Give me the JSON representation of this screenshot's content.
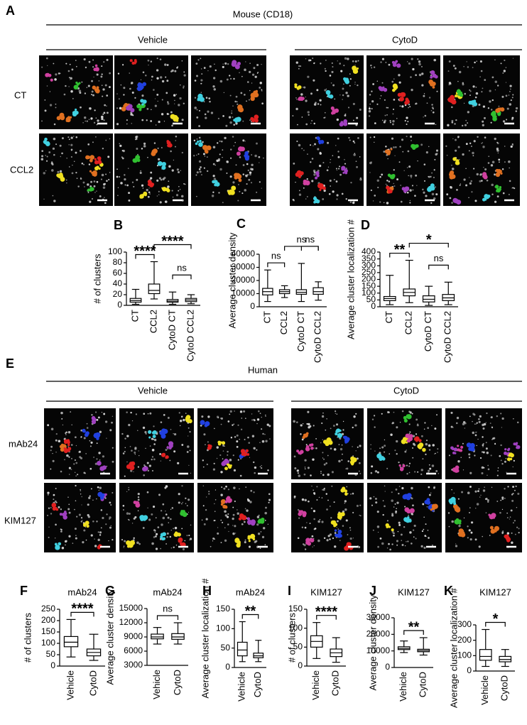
{
  "panel_a": {
    "label": "A",
    "title": "Mouse (CD18)",
    "groups": [
      "Vehicle",
      "CytoD"
    ],
    "rows": [
      "CT",
      "CCL2"
    ]
  },
  "panel_e": {
    "label": "E",
    "title": "Human",
    "groups": [
      "Vehicle",
      "CytoD"
    ],
    "rows": [
      "mAb24",
      "KIM127"
    ]
  },
  "chart_data": [
    {
      "type": "box",
      "label": "B",
      "ylabel": "# of clusters",
      "categories": [
        "CT",
        "CCL2",
        "CytoD CT",
        "CytoD CCL2"
      ],
      "boxes": [
        {
          "min": 2,
          "q1": 6,
          "median": 9,
          "q3": 13,
          "max": 30
        },
        {
          "min": 12,
          "q1": 22,
          "median": 28,
          "q3": 40,
          "max": 82
        },
        {
          "min": 2,
          "q1": 6,
          "median": 8,
          "q3": 11,
          "max": 25
        },
        {
          "min": 3,
          "q1": 7,
          "median": 10,
          "q3": 13,
          "max": 20
        }
      ],
      "ylim": [
        0,
        100
      ],
      "yticks": [
        0,
        20,
        40,
        60,
        80,
        100
      ],
      "comparisons": [
        {
          "from": "CT",
          "to": "CCL2",
          "label": "****"
        },
        {
          "from": "CCL2",
          "to": "CytoD CCL2",
          "label": "****"
        },
        {
          "from": "CytoD CT",
          "to": "CytoD CCL2",
          "label": "ns"
        }
      ]
    },
    {
      "type": "box",
      "label": "C",
      "ylabel": "Average cluster density",
      "categories": [
        "CT",
        "CCL2",
        "CytoD CT",
        "CytoD CCL2"
      ],
      "boxes": [
        {
          "min": 4000,
          "q1": 9000,
          "median": 11500,
          "q3": 14000,
          "max": 28000
        },
        {
          "min": 7000,
          "q1": 10000,
          "median": 11500,
          "q3": 13000,
          "max": 16000
        },
        {
          "min": 4000,
          "q1": 9500,
          "median": 11000,
          "q3": 13000,
          "max": 33000
        },
        {
          "min": 5000,
          "q1": 9500,
          "median": 11500,
          "q3": 14500,
          "max": 19000
        }
      ],
      "ylim": [
        0,
        40000
      ],
      "yticks": [
        0,
        10000,
        20000,
        30000,
        40000
      ],
      "comparisons": [
        {
          "from": "CT",
          "to": "CCL2",
          "label": "ns"
        },
        {
          "from": "CCL2",
          "to": "CytoD CCL2",
          "label": "ns"
        },
        {
          "from": "CytoD CT",
          "to": "CytoD CCL2",
          "label": "ns"
        }
      ]
    },
    {
      "type": "box",
      "label": "D",
      "ylabel": "Average cluster localization #",
      "categories": [
        "CT",
        "CCL2",
        "CytoD CT",
        "CytoD CCL2"
      ],
      "boxes": [
        {
          "min": 15,
          "q1": 45,
          "median": 60,
          "q3": 75,
          "max": 230
        },
        {
          "min": 30,
          "q1": 80,
          "median": 105,
          "q3": 130,
          "max": 340
        },
        {
          "min": 10,
          "q1": 35,
          "median": 55,
          "q3": 80,
          "max": 150
        },
        {
          "min": 15,
          "q1": 45,
          "median": 65,
          "q3": 90,
          "max": 180
        }
      ],
      "ylim": [
        0,
        400
      ],
      "yticks": [
        0,
        50,
        100,
        150,
        200,
        250,
        300,
        350,
        400
      ],
      "comparisons": [
        {
          "from": "CT",
          "to": "CCL2",
          "label": "**"
        },
        {
          "from": "CCL2",
          "to": "CytoD CCL2",
          "label": "*"
        },
        {
          "from": "CytoD CT",
          "to": "CytoD CCL2",
          "label": "ns"
        }
      ]
    },
    {
      "type": "box",
      "label": "F",
      "title": "mAb24",
      "ylabel": "# of clusters",
      "categories": [
        "Vehicle",
        "CytoD"
      ],
      "boxes": [
        {
          "min": 40,
          "q1": 85,
          "median": 105,
          "q3": 130,
          "max": 205
        },
        {
          "min": 25,
          "q1": 45,
          "median": 60,
          "q3": 75,
          "max": 140
        }
      ],
      "ylim": [
        0,
        250
      ],
      "yticks": [
        0,
        50,
        100,
        150,
        200,
        250
      ],
      "comparisons": [
        {
          "from": "Vehicle",
          "to": "CytoD",
          "label": "****"
        }
      ]
    },
    {
      "type": "box",
      "label": "G",
      "title": "mAb24",
      "ylabel": "Average cluster density",
      "categories": [
        "Vehicle",
        "CytoD"
      ],
      "boxes": [
        {
          "min": 7500,
          "q1": 8600,
          "median": 9000,
          "q3": 9600,
          "max": 11000
        },
        {
          "min": 7500,
          "q1": 8500,
          "median": 9000,
          "q3": 9700,
          "max": 12000
        }
      ],
      "ylim": [
        3000,
        15000
      ],
      "yticks": [
        3000,
        6000,
        9000,
        12000,
        15000
      ],
      "comparisons": [
        {
          "from": "Vehicle",
          "to": "CytoD",
          "label": "ns"
        }
      ]
    },
    {
      "type": "box",
      "label": "H",
      "title": "mAb24",
      "ylabel": "Average cluster localization #",
      "categories": [
        "Vehicle",
        "CytoD"
      ],
      "boxes": [
        {
          "min": 15,
          "q1": 30,
          "median": 45,
          "q3": 65,
          "max": 118
        },
        {
          "min": 15,
          "q1": 25,
          "median": 30,
          "q3": 37,
          "max": 70
        }
      ],
      "ylim": [
        0,
        150
      ],
      "yticks": [
        0,
        50,
        100,
        150
      ],
      "comparisons": [
        {
          "from": "Vehicle",
          "to": "CytoD",
          "label": "**"
        }
      ]
    },
    {
      "type": "box",
      "label": "I",
      "title": "KIM127",
      "ylabel": "# of clusters",
      "categories": [
        "Vehicle",
        "CytoD"
      ],
      "boxes": [
        {
          "min": 20,
          "q1": 50,
          "median": 65,
          "q3": 80,
          "max": 115
        },
        {
          "min": 10,
          "q1": 25,
          "median": 35,
          "q3": 45,
          "max": 75
        }
      ],
      "ylim": [
        0,
        150
      ],
      "yticks": [
        0,
        50,
        100,
        150
      ],
      "comparisons": [
        {
          "from": "Vehicle",
          "to": "CytoD",
          "label": "****"
        }
      ]
    },
    {
      "type": "box",
      "label": "J",
      "title": "KIM127",
      "ylabel": "Average cluster density",
      "categories": [
        "Vehicle",
        "CytoD"
      ],
      "boxes": [
        {
          "min": 9000,
          "q1": 10800,
          "median": 11500,
          "q3": 12500,
          "max": 16000
        },
        {
          "min": 7500,
          "q1": 9500,
          "median": 10200,
          "q3": 11000,
          "max": 18000
        }
      ],
      "ylim": [
        0,
        30000
      ],
      "yticks": [
        0,
        10000,
        20000,
        30000
      ],
      "comparisons": [
        {
          "from": "Vehicle",
          "to": "CytoD",
          "label": "**"
        }
      ]
    },
    {
      "type": "box",
      "label": "K",
      "title": "KIM127",
      "ylabel": "Average cluster localization #",
      "categories": [
        "Vehicle",
        "CytoD"
      ],
      "boxes": [
        {
          "min": 30,
          "q1": 70,
          "median": 95,
          "q3": 140,
          "max": 270
        },
        {
          "min": 30,
          "q1": 60,
          "median": 75,
          "q3": 95,
          "max": 140
        }
      ],
      "ylim": [
        0,
        300
      ],
      "yticks": [
        0,
        100,
        200,
        300
      ],
      "comparisons": [
        {
          "from": "Vehicle",
          "to": "CytoD",
          "label": "*"
        }
      ]
    }
  ]
}
